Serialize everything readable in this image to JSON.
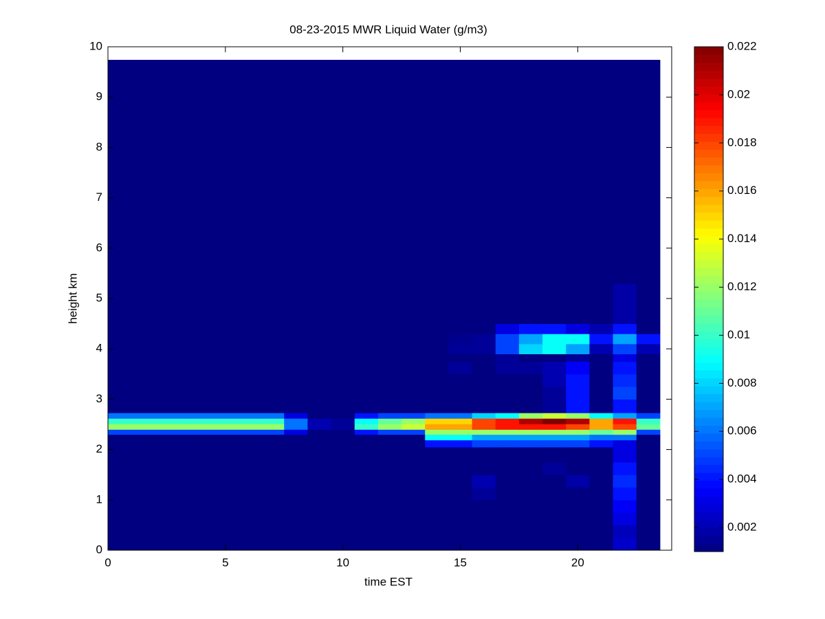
{
  "chart_data": {
    "type": "heatmap",
    "title": "08-23-2015 MWR Liquid Water (g/m3)",
    "x_label": "time EST",
    "y_label": "height km",
    "x": [
      0,
      1,
      2,
      3,
      4,
      5,
      6,
      7,
      8,
      9,
      10,
      11,
      12,
      13,
      14,
      15,
      16,
      17,
      18,
      19,
      20,
      21,
      22,
      23
    ],
    "y_edges": [
      0,
      0.25,
      0.5,
      0.75,
      1.0,
      1.25,
      1.5,
      1.75,
      2.05,
      2.19,
      2.3,
      2.4,
      2.51,
      2.62,
      2.73,
      3.0,
      3.25,
      3.5,
      3.75,
      3.9,
      4.1,
      4.3,
      4.5,
      5.3,
      9.74
    ],
    "z": [
      [
        0.001,
        0.001,
        0.001,
        0.001,
        0.001,
        0.001,
        0.001,
        0.001,
        0.001,
        0.001,
        0.001,
        0.001,
        0.001,
        0.001,
        0.001,
        0.001,
        0.001,
        0.001,
        0.001,
        0.001,
        0.001,
        0.001,
        0.0025,
        0.001
      ],
      [
        0.001,
        0.001,
        0.001,
        0.001,
        0.001,
        0.001,
        0.001,
        0.001,
        0.001,
        0.001,
        0.001,
        0.001,
        0.001,
        0.001,
        0.001,
        0.001,
        0.001,
        0.001,
        0.001,
        0.001,
        0.001,
        0.001,
        0.0022,
        0.001
      ],
      [
        0.001,
        0.001,
        0.001,
        0.001,
        0.001,
        0.001,
        0.001,
        0.001,
        0.001,
        0.001,
        0.001,
        0.001,
        0.001,
        0.001,
        0.001,
        0.001,
        0.001,
        0.001,
        0.001,
        0.001,
        0.001,
        0.001,
        0.003,
        0.001
      ],
      [
        0.001,
        0.001,
        0.001,
        0.001,
        0.001,
        0.001,
        0.001,
        0.001,
        0.001,
        0.001,
        0.001,
        0.001,
        0.001,
        0.001,
        0.001,
        0.001,
        0.001,
        0.001,
        0.001,
        0.001,
        0.001,
        0.001,
        0.0035,
        0.001
      ],
      [
        0.001,
        0.001,
        0.001,
        0.001,
        0.001,
        0.001,
        0.001,
        0.001,
        0.001,
        0.001,
        0.001,
        0.001,
        0.001,
        0.001,
        0.001,
        0.001,
        0.0015,
        0.001,
        0.001,
        0.001,
        0.001,
        0.001,
        0.004,
        0.001
      ],
      [
        0.001,
        0.001,
        0.001,
        0.001,
        0.001,
        0.001,
        0.001,
        0.001,
        0.001,
        0.001,
        0.001,
        0.001,
        0.001,
        0.001,
        0.001,
        0.001,
        0.002,
        0.001,
        0.001,
        0.001,
        0.0018,
        0.001,
        0.0045,
        0.001
      ],
      [
        0.001,
        0.001,
        0.001,
        0.001,
        0.001,
        0.001,
        0.001,
        0.001,
        0.001,
        0.001,
        0.001,
        0.001,
        0.001,
        0.001,
        0.001,
        0.001,
        0.001,
        0.001,
        0.001,
        0.0015,
        0.001,
        0.001,
        0.004,
        0.001
      ],
      [
        0.001,
        0.001,
        0.001,
        0.001,
        0.001,
        0.001,
        0.001,
        0.001,
        0.001,
        0.001,
        0.001,
        0.001,
        0.001,
        0.001,
        0.001,
        0.001,
        0.001,
        0.001,
        0.001,
        0.001,
        0.001,
        0.001,
        0.003,
        0.001
      ],
      [
        0.001,
        0.001,
        0.001,
        0.001,
        0.001,
        0.001,
        0.001,
        0.001,
        0.001,
        0.001,
        0.001,
        0.001,
        0.001,
        0.001,
        0.004,
        0.004,
        0.005,
        0.005,
        0.005,
        0.005,
        0.005,
        0.004,
        0.003,
        0.001
      ],
      [
        0.001,
        0.001,
        0.001,
        0.001,
        0.001,
        0.001,
        0.001,
        0.001,
        0.001,
        0.001,
        0.001,
        0.001,
        0.001,
        0.001,
        0.009,
        0.009,
        0.007,
        0.007,
        0.007,
        0.007,
        0.007,
        0.006,
        0.006,
        0.001
      ],
      [
        0.005,
        0.005,
        0.005,
        0.005,
        0.005,
        0.005,
        0.005,
        0.005,
        0.003,
        0.001,
        0.001,
        0.004,
        0.005,
        0.005,
        0.012,
        0.012,
        0.012,
        0.012,
        0.012,
        0.012,
        0.012,
        0.011,
        0.012,
        0.005
      ],
      [
        0.012,
        0.012,
        0.012,
        0.012,
        0.012,
        0.012,
        0.012,
        0.012,
        0.006,
        0.002,
        0.0015,
        0.01,
        0.012,
        0.013,
        0.016,
        0.016,
        0.018,
        0.019,
        0.019,
        0.019,
        0.018,
        0.016,
        0.018,
        0.011
      ],
      [
        0.01,
        0.01,
        0.01,
        0.01,
        0.01,
        0.01,
        0.01,
        0.01,
        0.006,
        0.002,
        0.0015,
        0.009,
        0.011,
        0.012,
        0.015,
        0.015,
        0.018,
        0.019,
        0.021,
        0.022,
        0.021,
        0.016,
        0.019,
        0.01
      ],
      [
        0.006,
        0.006,
        0.006,
        0.006,
        0.006,
        0.006,
        0.006,
        0.006,
        0.003,
        0.001,
        0.001,
        0.004,
        0.005,
        0.005,
        0.006,
        0.006,
        0.008,
        0.009,
        0.012,
        0.013,
        0.012,
        0.009,
        0.007,
        0.005
      ],
      [
        0.001,
        0.001,
        0.001,
        0.001,
        0.001,
        0.001,
        0.001,
        0.001,
        0.001,
        0.001,
        0.001,
        0.001,
        0.001,
        0.001,
        0.001,
        0.001,
        0.001,
        0.001,
        0.001,
        0.0015,
        0.004,
        0.001,
        0.004,
        0.001
      ],
      [
        0.001,
        0.001,
        0.001,
        0.001,
        0.001,
        0.001,
        0.001,
        0.001,
        0.001,
        0.001,
        0.001,
        0.001,
        0.001,
        0.001,
        0.001,
        0.001,
        0.001,
        0.001,
        0.001,
        0.0015,
        0.004,
        0.001,
        0.005,
        0.001
      ],
      [
        0.001,
        0.001,
        0.001,
        0.001,
        0.001,
        0.001,
        0.001,
        0.001,
        0.001,
        0.001,
        0.001,
        0.001,
        0.001,
        0.001,
        0.001,
        0.001,
        0.001,
        0.001,
        0.001,
        0.002,
        0.004,
        0.001,
        0.0045,
        0.001
      ],
      [
        0.001,
        0.001,
        0.001,
        0.001,
        0.001,
        0.001,
        0.001,
        0.001,
        0.001,
        0.001,
        0.001,
        0.001,
        0.001,
        0.001,
        0.001,
        0.0015,
        0.001,
        0.0015,
        0.0015,
        0.002,
        0.0035,
        0.001,
        0.004,
        0.001
      ],
      [
        0.001,
        0.001,
        0.001,
        0.001,
        0.001,
        0.001,
        0.001,
        0.001,
        0.001,
        0.001,
        0.001,
        0.001,
        0.001,
        0.001,
        0.001,
        0.001,
        0.001,
        0.0015,
        0.001,
        0.001,
        0.0015,
        0.001,
        0.003,
        0.001
      ],
      [
        0.001,
        0.001,
        0.001,
        0.001,
        0.001,
        0.001,
        0.001,
        0.001,
        0.001,
        0.001,
        0.001,
        0.001,
        0.001,
        0.001,
        0.001,
        0.0015,
        0.0015,
        0.005,
        0.008,
        0.009,
        0.007,
        0.002,
        0.005,
        0.002
      ],
      [
        0.001,
        0.001,
        0.001,
        0.001,
        0.001,
        0.001,
        0.001,
        0.001,
        0.001,
        0.001,
        0.001,
        0.001,
        0.001,
        0.001,
        0.001,
        0.0013,
        0.0015,
        0.005,
        0.007,
        0.009,
        0.009,
        0.004,
        0.007,
        0.004
      ],
      [
        0.001,
        0.001,
        0.001,
        0.001,
        0.001,
        0.001,
        0.001,
        0.001,
        0.001,
        0.001,
        0.001,
        0.001,
        0.001,
        0.001,
        0.001,
        0.001,
        0.001,
        0.003,
        0.004,
        0.004,
        0.003,
        0.002,
        0.004,
        0.001
      ],
      [
        0.001,
        0.001,
        0.001,
        0.001,
        0.001,
        0.001,
        0.001,
        0.001,
        0.001,
        0.001,
        0.001,
        0.001,
        0.001,
        0.001,
        0.001,
        0.001,
        0.001,
        0.001,
        0.001,
        0.001,
        0.001,
        0.001,
        0.0018,
        0.001
      ],
      [
        0.001,
        0.001,
        0.001,
        0.001,
        0.001,
        0.001,
        0.001,
        0.001,
        0.001,
        0.001,
        0.001,
        0.001,
        0.001,
        0.001,
        0.001,
        0.001,
        0.001,
        0.001,
        0.001,
        0.001,
        0.001,
        0.001,
        0.001,
        0.001
      ]
    ],
    "colormap": "jet",
    "xlim": [
      0,
      24
    ],
    "xticks": [
      0,
      5,
      10,
      15,
      20
    ],
    "ylim": [
      0,
      10
    ],
    "yticks": [
      0,
      1,
      2,
      3,
      4,
      5,
      6,
      7,
      8,
      9,
      10
    ],
    "clim": [
      0.001,
      0.022
    ],
    "cticks": [
      0.002,
      0.004,
      0.006,
      0.008,
      0.01,
      0.012,
      0.014,
      0.016,
      0.018,
      0.02,
      0.022
    ]
  }
}
